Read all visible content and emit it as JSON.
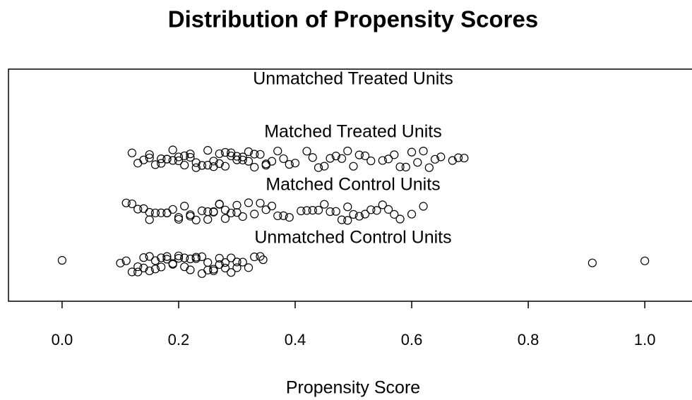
{
  "chart_data": {
    "type": "strip",
    "title": "Distribution of Propensity Scores",
    "xlabel": "Propensity Score",
    "xlim": [
      -0.092,
      1.081
    ],
    "xticks": [
      {
        "value": 0,
        "label": "0.0"
      },
      0.2,
      0.4,
      0.6,
      0.8,
      {
        "value": 1,
        "label": "1.0"
      }
    ],
    "series": [
      {
        "name": "Unmatched Treated Units",
        "color": "#000000",
        "values": []
      },
      {
        "name": "Matched Treated Units",
        "color": "#000000",
        "values": [
          0.12,
          0.13,
          0.14,
          0.15,
          0.15,
          0.16,
          0.17,
          0.17,
          0.18,
          0.18,
          0.19,
          0.19,
          0.2,
          0.2,
          0.21,
          0.21,
          0.22,
          0.22,
          0.23,
          0.23,
          0.24,
          0.25,
          0.25,
          0.26,
          0.26,
          0.27,
          0.27,
          0.28,
          0.28,
          0.29,
          0.29,
          0.3,
          0.3,
          0.31,
          0.31,
          0.32,
          0.32,
          0.33,
          0.33,
          0.34,
          0.35,
          0.35,
          0.36,
          0.37,
          0.38,
          0.39,
          0.4,
          0.42,
          0.43,
          0.44,
          0.45,
          0.46,
          0.47,
          0.48,
          0.49,
          0.5,
          0.51,
          0.52,
          0.53,
          0.55,
          0.56,
          0.57,
          0.58,
          0.59,
          0.6,
          0.61,
          0.62,
          0.63,
          0.64,
          0.65,
          0.67,
          0.68,
          0.69
        ]
      },
      {
        "name": "Matched Control Units",
        "color": "#000000",
        "values": [
          0.11,
          0.12,
          0.13,
          0.14,
          0.15,
          0.15,
          0.16,
          0.17,
          0.18,
          0.18,
          0.19,
          0.2,
          0.2,
          0.21,
          0.22,
          0.22,
          0.23,
          0.24,
          0.25,
          0.25,
          0.26,
          0.26,
          0.27,
          0.27,
          0.28,
          0.28,
          0.29,
          0.3,
          0.3,
          0.31,
          0.32,
          0.33,
          0.34,
          0.35,
          0.36,
          0.37,
          0.38,
          0.39,
          0.41,
          0.42,
          0.43,
          0.44,
          0.45,
          0.46,
          0.47,
          0.48,
          0.49,
          0.49,
          0.5,
          0.51,
          0.52,
          0.53,
          0.54,
          0.55,
          0.56,
          0.57,
          0.58,
          0.6,
          0.62
        ]
      },
      {
        "name": "Unmatched Control Units",
        "color": "#000000",
        "values": [
          0,
          0.1,
          0.11,
          0.12,
          0.13,
          0.13,
          0.14,
          0.14,
          0.15,
          0.15,
          0.16,
          0.16,
          0.17,
          0.17,
          0.18,
          0.18,
          0.19,
          0.19,
          0.2,
          0.2,
          0.21,
          0.21,
          0.22,
          0.22,
          0.23,
          0.23,
          0.24,
          0.24,
          0.25,
          0.25,
          0.26,
          0.26,
          0.27,
          0.27,
          0.28,
          0.28,
          0.29,
          0.29,
          0.3,
          0.3,
          0.31,
          0.32,
          0.33,
          0.34,
          0.345,
          0.91,
          1
        ]
      }
    ]
  }
}
